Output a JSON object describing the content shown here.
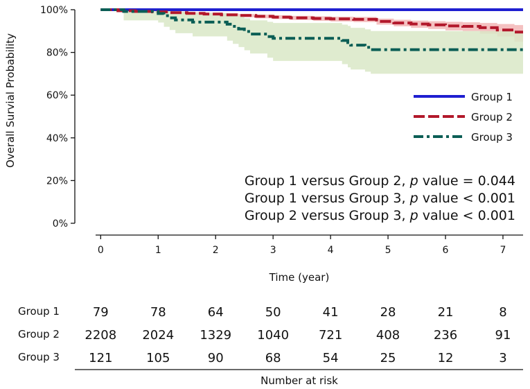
{
  "chart_data": {
    "type": "line",
    "subtype": "kaplan-meier",
    "xlabel": "Time (year)",
    "ylabel": "Overall Survial Probability",
    "xlim": [
      -0.45,
      7.35
    ],
    "ylim": [
      0,
      100
    ],
    "x_ticks": [
      "0",
      "1",
      "2",
      "3",
      "4",
      "5",
      "6",
      "7"
    ],
    "y_ticks": [
      "0%",
      "20%",
      "40%",
      "60%",
      "80%",
      "100%"
    ],
    "legend_position": "right",
    "series": [
      {
        "name": "Group 1",
        "color": "#1f1fd0",
        "style": "solid",
        "steps": [
          [
            0,
            100
          ],
          [
            7.35,
            100
          ]
        ]
      },
      {
        "name": "Group 2",
        "color": "#b2182b",
        "band_color": "#f2b6b6",
        "style": "dashed",
        "steps": [
          [
            0,
            100
          ],
          [
            0.3,
            99.5
          ],
          [
            0.6,
            99.2
          ],
          [
            0.9,
            99.0
          ],
          [
            1.2,
            98.6
          ],
          [
            1.5,
            98.3
          ],
          [
            1.8,
            98.0
          ],
          [
            2.1,
            97.6
          ],
          [
            2.4,
            97.3
          ],
          [
            2.7,
            96.9
          ],
          [
            3.0,
            96.5
          ],
          [
            3.3,
            96.2
          ],
          [
            3.7,
            95.9
          ],
          [
            4.0,
            95.7
          ],
          [
            4.4,
            95.5
          ],
          [
            4.8,
            94.5
          ],
          [
            5.1,
            93.8
          ],
          [
            5.4,
            93.3
          ],
          [
            5.7,
            92.9
          ],
          [
            6.0,
            92.4
          ],
          [
            6.3,
            92.2
          ],
          [
            6.6,
            91.6
          ],
          [
            6.9,
            90.5
          ],
          [
            7.2,
            89.5
          ],
          [
            7.35,
            89.5
          ]
        ],
        "ci_lower": [
          [
            0,
            100
          ],
          [
            0.3,
            99.2
          ],
          [
            0.6,
            98.8
          ],
          [
            0.9,
            98.5
          ],
          [
            1.2,
            98.1
          ],
          [
            1.5,
            97.7
          ],
          [
            1.8,
            97.3
          ],
          [
            2.1,
            96.9
          ],
          [
            2.4,
            96.5
          ],
          [
            2.7,
            96.0
          ],
          [
            3.0,
            95.6
          ],
          [
            3.3,
            95.2
          ],
          [
            3.7,
            94.8
          ],
          [
            4.0,
            94.5
          ],
          [
            4.4,
            94.2
          ],
          [
            4.8,
            93.0
          ],
          [
            5.1,
            92.2
          ],
          [
            5.4,
            91.5
          ],
          [
            5.7,
            91.0
          ],
          [
            6.0,
            90.3
          ],
          [
            6.3,
            90.0
          ],
          [
            6.6,
            88.8
          ],
          [
            6.9,
            87.5
          ],
          [
            7.2,
            85.0
          ],
          [
            7.35,
            85.0
          ]
        ],
        "ci_upper": [
          [
            0,
            100
          ],
          [
            0.3,
            99.8
          ],
          [
            0.6,
            99.6
          ],
          [
            0.9,
            99.4
          ],
          [
            1.2,
            99.1
          ],
          [
            1.5,
            98.8
          ],
          [
            1.8,
            98.6
          ],
          [
            2.1,
            98.3
          ],
          [
            2.4,
            98.0
          ],
          [
            2.7,
            97.7
          ],
          [
            3.0,
            97.4
          ],
          [
            3.3,
            97.1
          ],
          [
            3.7,
            96.9
          ],
          [
            4.0,
            96.7
          ],
          [
            4.4,
            96.6
          ],
          [
            4.8,
            95.8
          ],
          [
            5.1,
            95.3
          ],
          [
            5.4,
            94.9
          ],
          [
            5.7,
            94.6
          ],
          [
            6.0,
            94.3
          ],
          [
            6.3,
            94.1
          ],
          [
            6.6,
            93.8
          ],
          [
            6.9,
            93.3
          ],
          [
            7.2,
            92.8
          ],
          [
            7.35,
            92.8
          ]
        ]
      },
      {
        "name": "Group 3",
        "color": "#0b5e55",
        "band_color": "#d9e8c7",
        "style": "dashdot",
        "steps": [
          [
            0,
            100
          ],
          [
            0.4,
            99.2
          ],
          [
            1.0,
            98.2
          ],
          [
            1.1,
            97.2
          ],
          [
            1.2,
            96.2
          ],
          [
            1.3,
            95.2
          ],
          [
            1.6,
            94.2
          ],
          [
            2.2,
            93.2
          ],
          [
            2.3,
            92.2
          ],
          [
            2.4,
            91.0
          ],
          [
            2.5,
            89.8
          ],
          [
            2.6,
            88.6
          ],
          [
            2.9,
            87.4
          ],
          [
            3.0,
            86.6
          ],
          [
            4.2,
            85.6
          ],
          [
            4.3,
            84.6
          ],
          [
            4.35,
            83.4
          ],
          [
            4.6,
            82.4
          ],
          [
            4.7,
            81.3
          ],
          [
            7.35,
            81.3
          ]
        ],
        "ci_lower": [
          [
            0,
            100
          ],
          [
            0.4,
            95.0
          ],
          [
            1.0,
            94.0
          ],
          [
            1.1,
            92.0
          ],
          [
            1.2,
            90.5
          ],
          [
            1.3,
            89.0
          ],
          [
            1.6,
            87.5
          ],
          [
            2.2,
            85.5
          ],
          [
            2.3,
            84.0
          ],
          [
            2.4,
            82.5
          ],
          [
            2.5,
            81.0
          ],
          [
            2.6,
            79.5
          ],
          [
            2.9,
            77.5
          ],
          [
            3.0,
            76.0
          ],
          [
            4.2,
            74.5
          ],
          [
            4.3,
            73.0
          ],
          [
            4.35,
            72.0
          ],
          [
            4.6,
            71.0
          ],
          [
            4.7,
            70.0
          ],
          [
            7.35,
            70.0
          ]
        ],
        "ci_upper": [
          [
            0,
            100
          ],
          [
            0.4,
            100
          ],
          [
            1.0,
            100
          ],
          [
            1.1,
            99.8
          ],
          [
            1.2,
            99.5
          ],
          [
            1.3,
            99.0
          ],
          [
            1.6,
            98.5
          ],
          [
            2.2,
            98.0
          ],
          [
            2.3,
            97.5
          ],
          [
            2.4,
            96.8
          ],
          [
            2.5,
            96.0
          ],
          [
            2.6,
            95.0
          ],
          [
            2.9,
            94.3
          ],
          [
            3.0,
            93.8
          ],
          [
            4.2,
            93.0
          ],
          [
            4.3,
            92.4
          ],
          [
            4.35,
            91.5
          ],
          [
            4.6,
            90.8
          ],
          [
            4.7,
            90.0
          ],
          [
            7.35,
            90.0
          ]
        ]
      }
    ],
    "annotations": [
      {
        "prefix": "Group 1 versus Group 2, ",
        "italic": "p",
        "suffix": " value = 0.044"
      },
      {
        "prefix": "Group 1 versus Group 3, ",
        "italic": "p",
        "suffix": " value < 0.001"
      },
      {
        "prefix": "Group 2 versus Group 3, ",
        "italic": "p",
        "suffix": " value < 0.001"
      }
    ],
    "risk_table": {
      "title": "Number at risk",
      "rows": [
        {
          "label": "Group 1",
          "values": [
            "79",
            "78",
            "64",
            "50",
            "41",
            "28",
            "21",
            "8"
          ]
        },
        {
          "label": "Group 2",
          "values": [
            "2208",
            "2024",
            "1329",
            "1040",
            "721",
            "408",
            "236",
            "91"
          ]
        },
        {
          "label": "Group 3",
          "values": [
            "121",
            "105",
            "90",
            "68",
            "54",
            "25",
            "12",
            "3"
          ]
        }
      ]
    }
  }
}
